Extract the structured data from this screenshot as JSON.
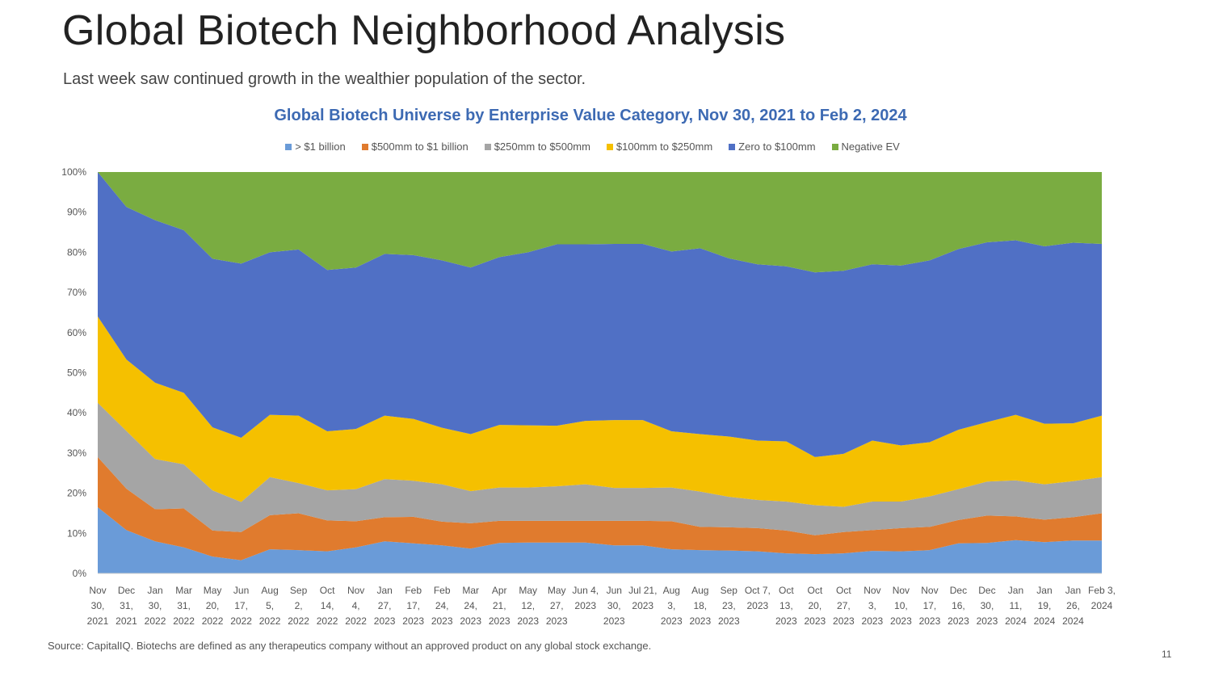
{
  "page": {
    "title": "Global Biotech Neighborhood Analysis",
    "subtitle": "Last week saw continued growth in the wealthier population of the sector.",
    "footer": "Source: CapitalIQ. Biotechs are defined as any therapeutics company without an approved product on any global stock exchange.",
    "page_number": "11"
  },
  "chart_data": {
    "type": "area",
    "stacked": true,
    "title": "Global Biotech Universe by Enterprise Value Category, Nov 30, 2021 to Feb 2, 2024",
    "xlabel": "",
    "ylabel": "",
    "ylim": [
      0,
      100
    ],
    "y_ticks": [
      "0%",
      "10%",
      "20%",
      "30%",
      "40%",
      "50%",
      "60%",
      "70%",
      "80%",
      "90%",
      "100%"
    ],
    "legend_position": "top-center",
    "categories": [
      [
        "Nov",
        "30,",
        "2021"
      ],
      [
        "Dec",
        "31,",
        "2021"
      ],
      [
        "Jan",
        "30,",
        "2022"
      ],
      [
        "Mar",
        "31,",
        "2022"
      ],
      [
        "May",
        "20,",
        "2022"
      ],
      [
        "Jun",
        "17,",
        "2022"
      ],
      [
        "Aug",
        "5,",
        "2022"
      ],
      [
        "Sep",
        "2,",
        "2022"
      ],
      [
        "Oct",
        "14,",
        "2022"
      ],
      [
        "Nov",
        "4,",
        "2022"
      ],
      [
        "Jan",
        "27,",
        "2023"
      ],
      [
        "Feb",
        "17,",
        "2023"
      ],
      [
        "Feb",
        "24,",
        "2023"
      ],
      [
        "Mar",
        "24,",
        "2023"
      ],
      [
        "Apr",
        "21,",
        "2023"
      ],
      [
        "May",
        "12,",
        "2023"
      ],
      [
        "May",
        "27,",
        "2023"
      ],
      [
        "Jun 4,",
        "2023"
      ],
      [
        "Jun",
        "30,",
        "2023"
      ],
      [
        "Jul 21,",
        "2023"
      ],
      [
        "Aug",
        "3,",
        "2023"
      ],
      [
        "Aug",
        "18,",
        "2023"
      ],
      [
        "Sep",
        "23,",
        "2023"
      ],
      [
        "Oct 7,",
        "2023"
      ],
      [
        "Oct",
        "13,",
        "2023"
      ],
      [
        "Oct",
        "20,",
        "2023"
      ],
      [
        "Oct",
        "27,",
        "2023"
      ],
      [
        "Nov",
        "3,",
        "2023"
      ],
      [
        "Nov",
        "10,",
        "2023"
      ],
      [
        "Nov",
        "17,",
        "2023"
      ],
      [
        "Dec",
        "16,",
        "2023"
      ],
      [
        "Dec",
        "30,",
        "2023"
      ],
      [
        "Jan",
        "11,",
        "2024"
      ],
      [
        "Jan",
        "19,",
        "2024"
      ],
      [
        "Jan",
        "26,",
        "2024"
      ],
      [
        "Feb 3,",
        "2024"
      ]
    ],
    "series": [
      {
        "name": "> $1 billion",
        "color": "#6a9bd8",
        "values": [
          16.5,
          10.8,
          8,
          6.5,
          4.2,
          3.3,
          6,
          5.8,
          5.5,
          6.5,
          8,
          7.5,
          7,
          6.2,
          7.6,
          7.7,
          7.7,
          7.7,
          7,
          7,
          6,
          5.8,
          5.7,
          5.5,
          5,
          4.8,
          5,
          5.6,
          5.5,
          5.8,
          7.5,
          7.6,
          8.3,
          7.8,
          8.2,
          8.2
        ]
      },
      {
        "name": "$500mm to $1 billion",
        "color": "#e07b2e",
        "values": [
          12.5,
          10.3,
          8,
          9.7,
          6.5,
          7,
          8.5,
          9.2,
          7.7,
          6.5,
          6,
          6.6,
          5.9,
          6.3,
          5.5,
          5.4,
          5.4,
          5.4,
          6.1,
          6.1,
          7,
          5.8,
          5.8,
          5.8,
          5.7,
          4.7,
          5.3,
          5.2,
          5.8,
          5.8,
          5.8,
          6.8,
          5.9,
          5.6,
          5.8,
          6.8
        ]
      },
      {
        "name": "$250mm to $500mm",
        "color": "#a5a5a5",
        "values": [
          13.5,
          14.4,
          12.5,
          11,
          10,
          7.5,
          9.5,
          7.5,
          7.5,
          8,
          9.5,
          9,
          9.3,
          8,
          8.3,
          8.3,
          8.6,
          9.1,
          8.2,
          8.2,
          8.4,
          8.8,
          7.6,
          7,
          7.2,
          7.5,
          6.3,
          7.1,
          6.6,
          7.6,
          7.7,
          8.5,
          9,
          8.8,
          9,
          9
        ]
      },
      {
        "name": "$100mm to $250mm",
        "color": "#f5c000",
        "values": [
          21.5,
          17.8,
          19,
          17.8,
          15.7,
          16,
          15.5,
          16.8,
          14.7,
          15,
          15.8,
          15.4,
          14.1,
          14.2,
          15.6,
          15.5,
          15.1,
          15.8,
          16.9,
          16.9,
          14,
          14.3,
          15,
          14.8,
          15,
          12,
          13.2,
          15.2,
          14,
          13.5,
          14.8,
          14.8,
          16.3,
          15.1,
          14.4,
          15.3
        ]
      },
      {
        "name": "Zero to $100mm",
        "color": "#5070c5",
        "values": [
          36,
          38,
          40.5,
          40.5,
          42,
          43.4,
          40.5,
          41.4,
          40.2,
          40.2,
          40.3,
          40.8,
          41.7,
          41.5,
          41.8,
          43.1,
          45.2,
          44,
          43.9,
          43.9,
          44.8,
          46.3,
          44.4,
          43.9,
          43.6,
          46,
          45.6,
          43.9,
          44.8,
          45.3,
          45,
          44.8,
          43.5,
          44.2,
          45,
          42.8
        ]
      },
      {
        "name": "Negative EV",
        "color": "#7aac41",
        "values": [
          0,
          8.7,
          12,
          14.5,
          21.6,
          22.8,
          20,
          19.3,
          24.4,
          23.8,
          20.4,
          20.7,
          22,
          23.8,
          21.2,
          20,
          18,
          18,
          17.9,
          17.9,
          19.8,
          19,
          21.5,
          23,
          23.5,
          25,
          24.6,
          23,
          23.3,
          22,
          19.2,
          17.5,
          17,
          18.5,
          17.6,
          17.9
        ]
      }
    ]
  }
}
